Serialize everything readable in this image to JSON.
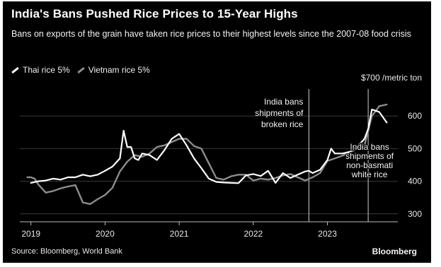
{
  "title": "India's Bans Pushed Rice Prices to 15-Year Highs",
  "subtitle": "Bans on exports of the grain have taken rice prices to their highest levels since the 2007-08 food crisis",
  "source": "Source: Bloomberg, World Bank",
  "brand": "Bloomberg",
  "colors": {
    "thai": "#ffffff",
    "vietnam": "#8c8c8c",
    "background": "#000000",
    "grid": "#3a3a3a"
  },
  "chart_data": {
    "type": "line",
    "unit_label": "$700 /metric ton",
    "x_ticks": [
      "2019",
      "2020",
      "2021",
      "2022",
      "2023"
    ],
    "x_range": [
      2018.85,
      2023.95
    ],
    "y_ticks": [
      300,
      400,
      500,
      600
    ],
    "ylim": [
      280,
      700
    ],
    "grid": true,
    "legend_placement": "top-left",
    "series": [
      {
        "name": "Thai rice 5%",
        "x": [
          2019.0,
          2019.1,
          2019.2,
          2019.3,
          2019.4,
          2019.5,
          2019.6,
          2019.7,
          2019.8,
          2019.9,
          2020.0,
          2020.1,
          2020.2,
          2020.25,
          2020.3,
          2020.35,
          2020.4,
          2020.45,
          2020.5,
          2020.6,
          2020.7,
          2020.8,
          2020.9,
          2021.0,
          2021.1,
          2021.2,
          2021.3,
          2021.4,
          2021.5,
          2021.6,
          2021.7,
          2021.8,
          2021.9,
          2022.0,
          2022.1,
          2022.2,
          2022.3,
          2022.4,
          2022.5,
          2022.6,
          2022.7,
          2022.75,
          2022.8,
          2022.9,
          2023.0,
          2023.05,
          2023.1,
          2023.2,
          2023.3,
          2023.4,
          2023.5,
          2023.55,
          2023.6,
          2023.7,
          2023.8
        ],
        "values": [
          395,
          400,
          402,
          408,
          405,
          412,
          412,
          420,
          415,
          420,
          432,
          445,
          470,
          555,
          505,
          505,
          470,
          465,
          485,
          480,
          465,
          495,
          530,
          545,
          510,
          470,
          440,
          408,
          398,
          396,
          395,
          394,
          418,
          422,
          416,
          432,
          395,
          425,
          410,
          420,
          430,
          432,
          425,
          435,
          465,
          500,
          485,
          485,
          490,
          505,
          530,
          560,
          620,
          612,
          580
        ]
      },
      {
        "name": "Vietnam rice 5%",
        "x": [
          2018.95,
          2019.0,
          2019.05,
          2019.1,
          2019.2,
          2019.3,
          2019.4,
          2019.5,
          2019.6,
          2019.7,
          2019.8,
          2019.9,
          2020.0,
          2020.1,
          2020.2,
          2020.3,
          2020.4,
          2020.5,
          2020.6,
          2020.7,
          2020.8,
          2020.9,
          2021.0,
          2021.1,
          2021.2,
          2021.3,
          2021.4,
          2021.5,
          2021.6,
          2021.7,
          2021.8,
          2021.9,
          2022.0,
          2022.1,
          2022.2,
          2022.3,
          2022.4,
          2022.5,
          2022.6,
          2022.7,
          2022.8,
          2022.9,
          2023.0,
          2023.1,
          2023.2,
          2023.3,
          2023.4,
          2023.5,
          2023.6,
          2023.7,
          2023.8
        ],
        "values": [
          412,
          412,
          408,
          390,
          365,
          370,
          378,
          384,
          388,
          335,
          330,
          345,
          358,
          380,
          430,
          460,
          480,
          475,
          485,
          505,
          510,
          520,
          530,
          530,
          508,
          500,
          455,
          410,
          405,
          415,
          420,
          420,
          402,
          408,
          405,
          410,
          418,
          422,
          412,
          402,
          412,
          425,
          462,
          470,
          478,
          488,
          500,
          510,
          600,
          630,
          635
        ]
      }
    ],
    "annotations": [
      {
        "x": 2022.75,
        "text": "India bans shipments of broken rice",
        "lines": [
          "India bans",
          "shipments of",
          "broken rice"
        ]
      },
      {
        "x": 2023.55,
        "text": "India bans shipments of non-basmati white rice",
        "lines": [
          "India bans",
          "shipments of",
          "non-basmati",
          "white rice"
        ]
      }
    ]
  }
}
